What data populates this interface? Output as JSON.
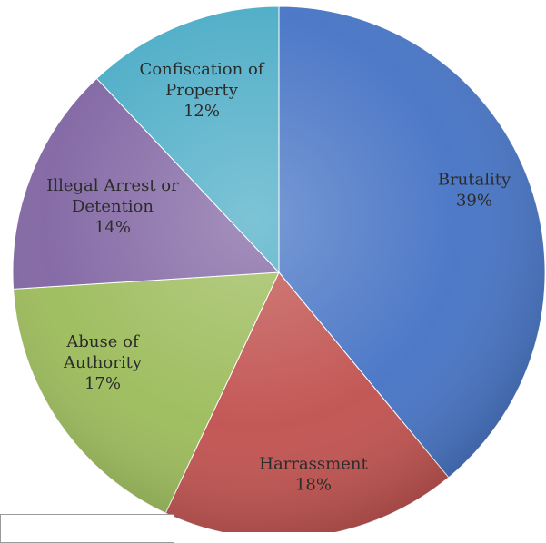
{
  "chart_data": {
    "type": "pie",
    "start_angle": "12 o'clock",
    "direction": "clockwise",
    "slices": [
      {
        "label_lines": [
          "Brutality",
          "39%"
        ],
        "value": 39,
        "color": "#4472C4"
      },
      {
        "label_lines": [
          "Harrassment",
          "18%"
        ],
        "value": 18,
        "color": "#C0504D"
      },
      {
        "label_lines": [
          "Abuse of",
          "Authority",
          "17%"
        ],
        "value": 17,
        "color": "#9BBB59"
      },
      {
        "label_lines": [
          "Illegal Arrest or",
          "Detention",
          "14%"
        ],
        "value": 14,
        "color": "#8064A2"
      },
      {
        "label_lines": [
          "Confiscation of",
          "Property",
          "12%"
        ],
        "value": 12,
        "color": "#4BACC6"
      }
    ],
    "style": "3d-shaded"
  }
}
